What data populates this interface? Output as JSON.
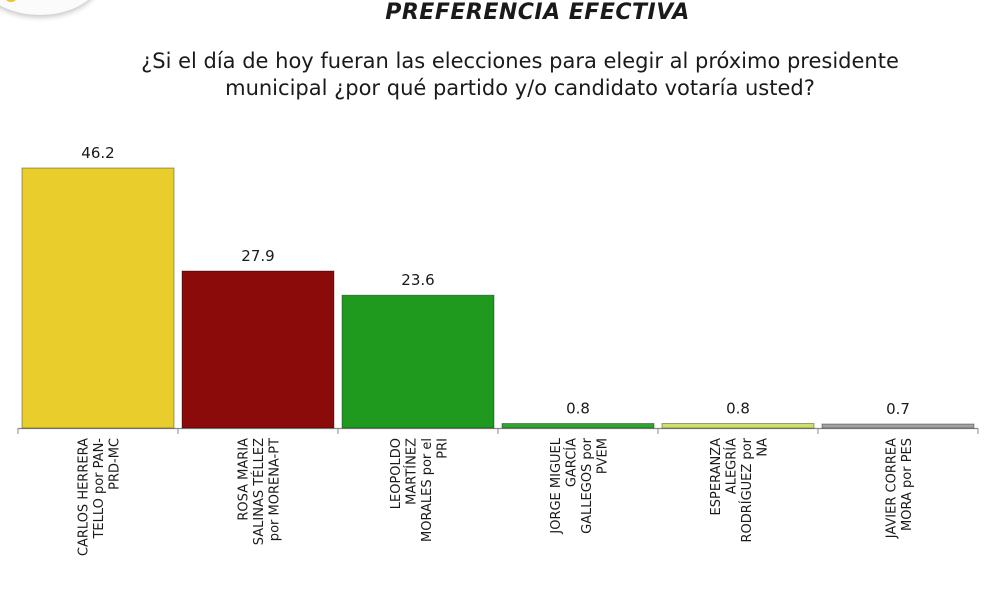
{
  "header": {
    "title": "PREFERENCIA EFECTIVA",
    "question_line1": "¿Si el día de hoy fueran las elecciones para elegir al próximo presidente",
    "question_line2": "municipal ¿por qué partido y/o candidato votaría usted?"
  },
  "chart_data": {
    "type": "bar",
    "title": "PREFERENCIA EFECTIVA",
    "xlabel": "",
    "ylabel": "",
    "ylim": [
      0,
      50
    ],
    "grid": false,
    "legend": "none",
    "categories": [
      [
        "CARLOS HERRERA",
        "TELLO por PAN-",
        "PRD-MC"
      ],
      [
        "ROSA MARIA",
        "SALINAS TÉLLEZ",
        "por MORENA-PT"
      ],
      [
        "LEOPOLDO",
        "MARTÍNEZ",
        "MORALES por el",
        "PRI"
      ],
      [
        "JORGE MIGUEL",
        "GARCÍA",
        "GALLEGOS por",
        "PVEM"
      ],
      [
        "ESPERANZA",
        "ALEGRÍA",
        "RODRÍGUEZ por",
        "NA"
      ],
      [
        "JAVIER CORREA",
        "MORA por PES"
      ]
    ],
    "values": [
      46.2,
      27.9,
      23.6,
      0.8,
      0.8,
      0.7
    ],
    "value_labels": [
      "46.2",
      "27.9",
      "23.6",
      "0.8",
      "0.8",
      "0.7"
    ],
    "colors": [
      "#e8cd2c",
      "#8b0a0a",
      "#1f9a1f",
      "#2ea52e",
      "#cfe06a",
      "#a3a3a3"
    ]
  }
}
